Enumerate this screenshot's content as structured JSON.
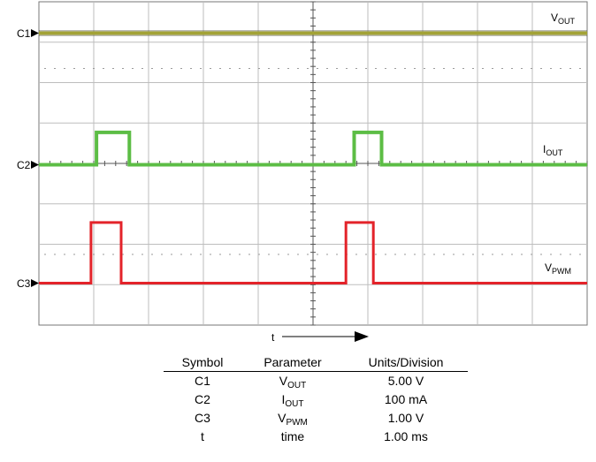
{
  "chart_data": {
    "type": "line",
    "subtype": "oscilloscope",
    "grid": true,
    "divisions": {
      "x": 10,
      "y": 8
    },
    "series": [
      {
        "name": "VOUT",
        "channel": "C1",
        "color": "#a3a336",
        "waveform": "flat",
        "level": 0
      },
      {
        "name": "IOUT",
        "channel": "C2",
        "color": "#5cbd45",
        "waveform": "pulse",
        "low": 0,
        "high": 1.6,
        "pulses": [
          [
            1.05,
            1.65
          ],
          [
            5.75,
            6.25
          ]
        ]
      },
      {
        "name": "VPWM",
        "channel": "C3",
        "color": "#e3232a",
        "waveform": "pulse",
        "low": 0,
        "high": 3.0,
        "pulses": [
          [
            0.95,
            1.5
          ],
          [
            5.6,
            6.1
          ]
        ]
      }
    ],
    "channel_markers": [
      "C1",
      "C2",
      "C3"
    ],
    "trace_labels": [
      {
        "main": "V",
        "sub": "OUT"
      },
      {
        "main": "I",
        "sub": "OUT"
      },
      {
        "main": "V",
        "sub": "PWM"
      }
    ],
    "xlabel": "t"
  },
  "table": {
    "headers": [
      "Symbol",
      "Parameter",
      "Units/Division"
    ],
    "rows": [
      {
        "symbol": "C1",
        "param_main": "V",
        "param_sub": "OUT",
        "units": "5.00 V"
      },
      {
        "symbol": "C2",
        "param_main": "I",
        "param_sub": "OUT",
        "units": "100 mA"
      },
      {
        "symbol": "C3",
        "param_main": "V",
        "param_sub": "PWM",
        "units": "1.00 V"
      },
      {
        "symbol": "t",
        "param_main": "time",
        "param_sub": "",
        "units": "1.00 ms"
      }
    ]
  }
}
